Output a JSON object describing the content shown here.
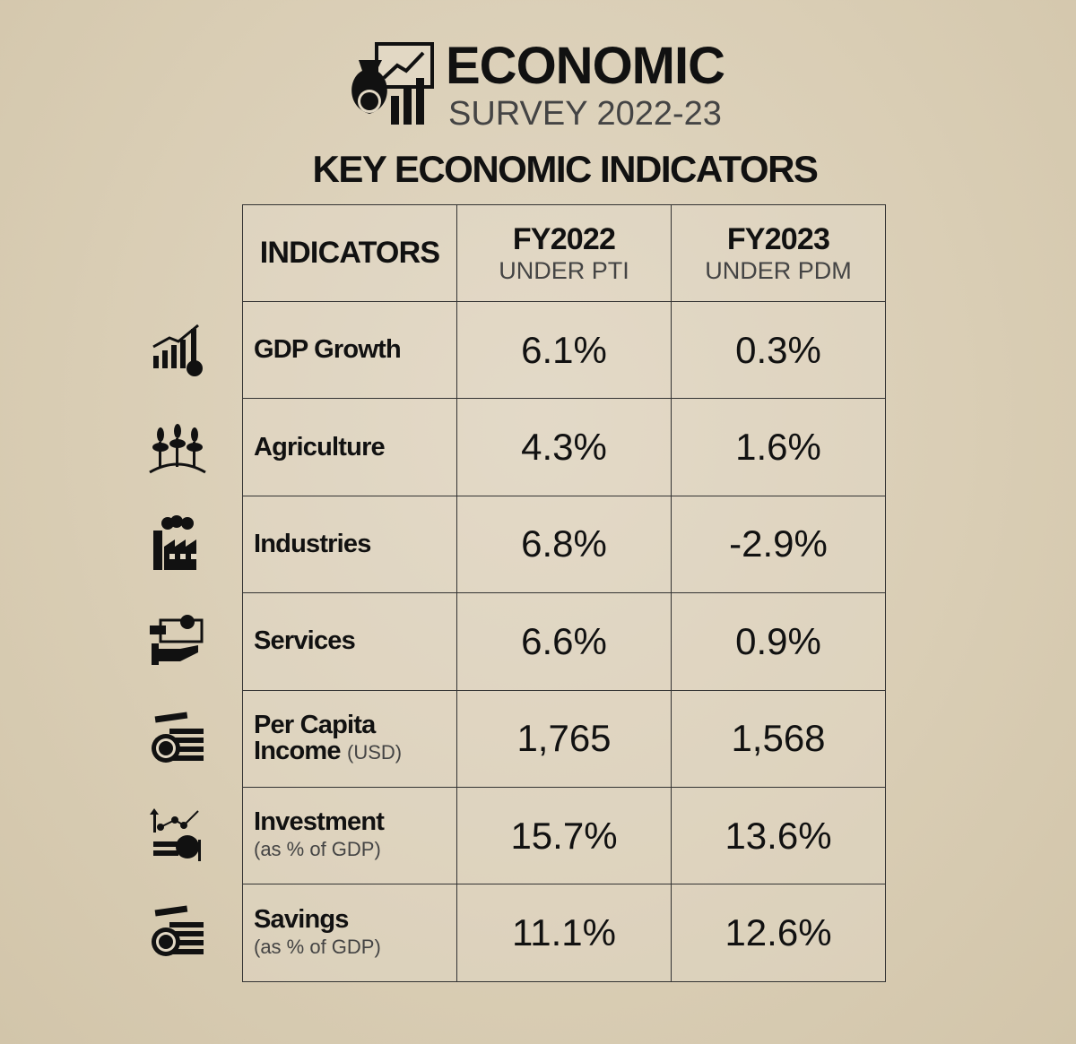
{
  "header": {
    "title": "ECONOMIC",
    "subtitle": "SURVEY 2022-23",
    "heading": "KEY ECONOMIC INDICATORS"
  },
  "table": {
    "columns": [
      {
        "label": "INDICATORS"
      },
      {
        "label": "FY2022",
        "sub": "UNDER PTI"
      },
      {
        "label": "FY2023",
        "sub": "UNDER PDM"
      }
    ],
    "rows": [
      {
        "name": "GDP Growth",
        "values": [
          "6.1%",
          "0.3%"
        ]
      },
      {
        "name": "Agriculture",
        "values": [
          "4.3%",
          "1.6%"
        ]
      },
      {
        "name": "Industries",
        "values": [
          "6.8%",
          "-2.9%"
        ]
      },
      {
        "name": "Services",
        "values": [
          "6.6%",
          "0.9%"
        ]
      },
      {
        "name": "Per Capita Income",
        "note": "(USD)",
        "values": [
          "1,765",
          "1,568"
        ]
      },
      {
        "name": "Investment",
        "note": "(as % of GDP)",
        "values": [
          "15.7%",
          "13.6%"
        ]
      },
      {
        "name": "Savings",
        "note": "(as % of GDP)",
        "values": [
          "11.1%",
          "12.6%"
        ]
      }
    ]
  }
}
